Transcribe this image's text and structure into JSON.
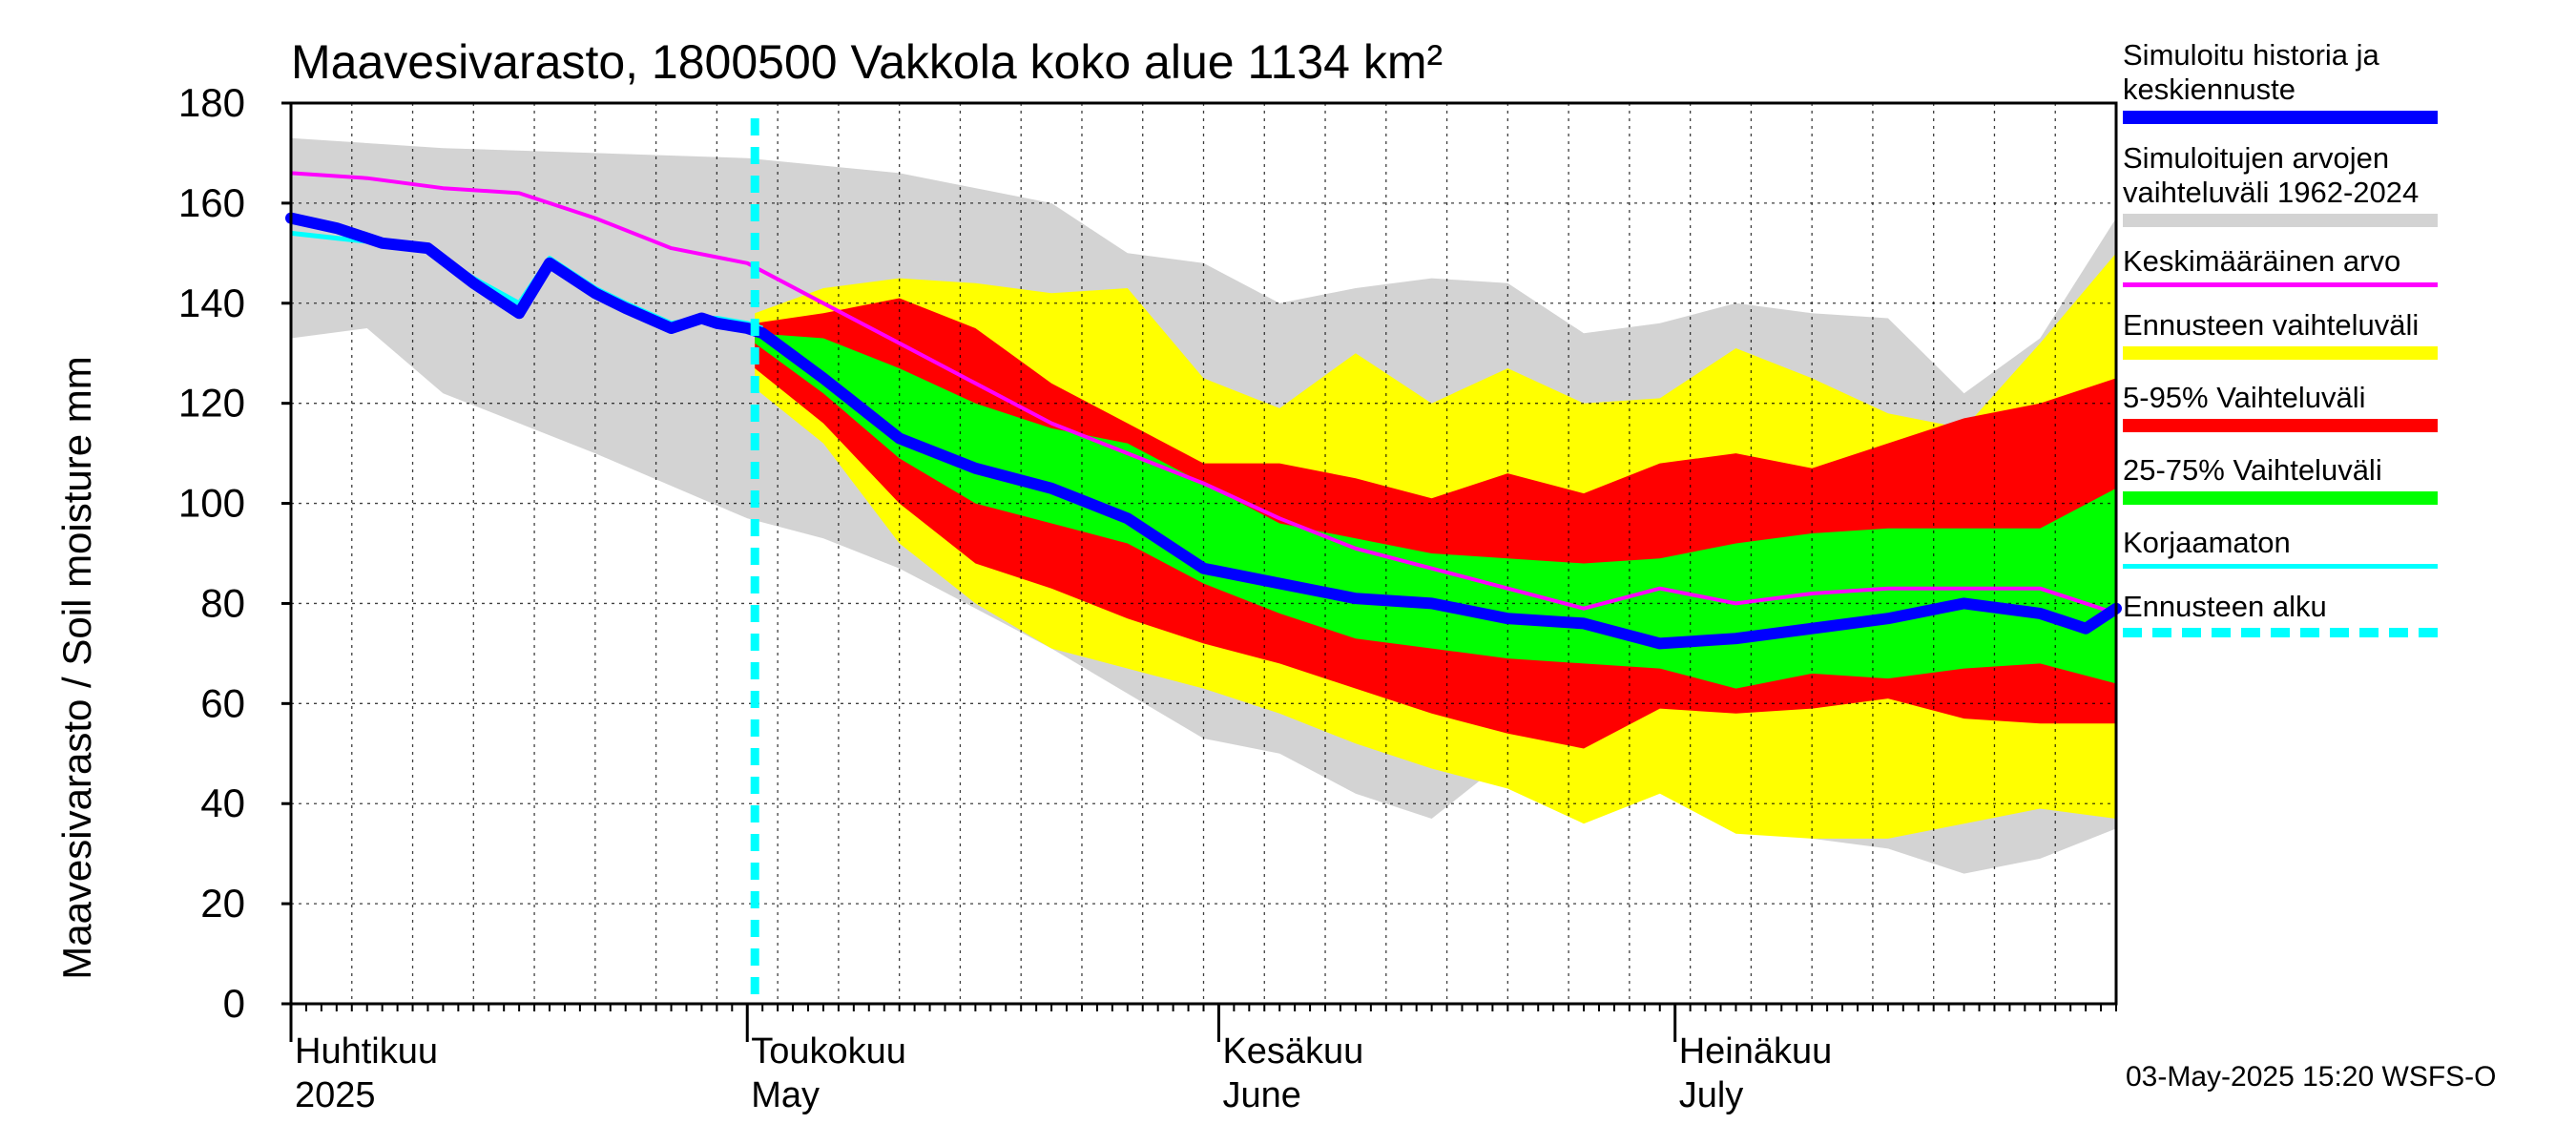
{
  "chart_data": {
    "type": "area",
    "title": "Maavesivarasto, 1800500 Vakkola koko alue 1134 km²",
    "ylabel": "Maavesivarasto / Soil moisture   mm",
    "ylim": [
      0,
      180
    ],
    "yticks": [
      0,
      20,
      40,
      60,
      80,
      100,
      120,
      140,
      160,
      180
    ],
    "xrange_days": [
      0,
      120
    ],
    "x_unit": "days since 2025-04-01",
    "grid": true,
    "month_labels": [
      {
        "fi": "Huhtikuu",
        "en": "2025",
        "day": 0
      },
      {
        "fi": "Toukokuu",
        "en": "May",
        "day": 30
      },
      {
        "fi": "Kesäkuu",
        "en": "June",
        "day": 61
      },
      {
        "fi": "Heinäkuu",
        "en": "July",
        "day": 91
      }
    ],
    "forecast_start_day": 30.5,
    "colors": {
      "history": "#0000ff",
      "range": "#d3d3d3",
      "mean": "#ff00ff",
      "forecast": "#ffff00",
      "p5_95": "#ff0000",
      "p25_75": "#00ff00",
      "uncorrected": "#00ffff",
      "start": "#00ffff"
    },
    "series": [
      {
        "name": "range_hi",
        "x": [
          0,
          10,
          20,
          30,
          40,
          50,
          55,
          60,
          65,
          70,
          75,
          80,
          85,
          90,
          95,
          100,
          105,
          110,
          115,
          120
        ],
        "y": [
          173,
          171,
          170,
          169,
          166,
          160,
          150,
          148,
          140,
          143,
          145,
          144,
          134,
          136,
          140,
          138,
          137,
          122,
          133,
          157
        ]
      },
      {
        "name": "range_lo",
        "x": [
          0,
          5,
          10,
          20,
          30,
          35,
          40,
          50,
          60,
          65,
          70,
          75,
          80,
          85,
          90,
          95,
          100,
          105,
          110,
          115,
          120
        ],
        "y": [
          133,
          135,
          122,
          110,
          97,
          93,
          87,
          71,
          53,
          50,
          42,
          37,
          49,
          49,
          44,
          39,
          33,
          31,
          26,
          29,
          35
        ]
      },
      {
        "name": "forecast_hi",
        "x": [
          30.5,
          35,
          40,
          45,
          50,
          55,
          60,
          65,
          70,
          75,
          80,
          85,
          90,
          95,
          100,
          105,
          110,
          115,
          120
        ],
        "y": [
          138,
          143,
          145,
          144,
          142,
          143,
          125,
          119,
          130,
          120,
          127,
          120,
          121,
          131,
          125,
          118,
          115,
          132,
          150
        ]
      },
      {
        "name": "forecast_lo",
        "x": [
          30.5,
          35,
          40,
          45,
          50,
          55,
          60,
          65,
          70,
          75,
          80,
          85,
          90,
          95,
          100,
          105,
          110,
          115,
          120
        ],
        "y": [
          123,
          112,
          92,
          80,
          71,
          67,
          63,
          58,
          52,
          47,
          43,
          36,
          42,
          34,
          33,
          33,
          36,
          39,
          37
        ]
      },
      {
        "name": "p95",
        "x": [
          30.5,
          35,
          40,
          45,
          50,
          55,
          60,
          65,
          70,
          75,
          80,
          85,
          90,
          95,
          100,
          105,
          110,
          115,
          120
        ],
        "y": [
          136,
          138,
          141,
          135,
          124,
          116,
          108,
          108,
          105,
          101,
          106,
          102,
          108,
          110,
          107,
          112,
          117,
          120,
          125
        ]
      },
      {
        "name": "p5",
        "x": [
          30.5,
          35,
          40,
          45,
          50,
          55,
          60,
          65,
          70,
          75,
          80,
          85,
          90,
          95,
          100,
          105,
          110,
          115,
          120
        ],
        "y": [
          127,
          116,
          100,
          88,
          83,
          77,
          72,
          68,
          63,
          58,
          54,
          51,
          59,
          58,
          59,
          61,
          57,
          56,
          56
        ]
      },
      {
        "name": "p75",
        "x": [
          30.5,
          35,
          40,
          45,
          50,
          55,
          60,
          65,
          70,
          75,
          80,
          85,
          90,
          95,
          100,
          105,
          110,
          115,
          120
        ],
        "y": [
          134,
          133,
          127,
          120,
          115,
          112,
          104,
          96,
          93,
          90,
          89,
          88,
          89,
          92,
          94,
          95,
          95,
          95,
          103
        ]
      },
      {
        "name": "p25",
        "x": [
          30.5,
          35,
          40,
          45,
          50,
          55,
          60,
          65,
          70,
          75,
          80,
          85,
          90,
          95,
          100,
          105,
          110,
          115,
          120
        ],
        "y": [
          132,
          122,
          109,
          100,
          96,
          92,
          84,
          78,
          73,
          71,
          69,
          68,
          67,
          63,
          66,
          65,
          67,
          68,
          64
        ]
      },
      {
        "name": "Keskimääräinen arvo",
        "x": [
          0,
          5,
          10,
          15,
          20,
          25,
          30,
          35,
          40,
          45,
          50,
          55,
          60,
          65,
          70,
          75,
          80,
          85,
          90,
          95,
          100,
          105,
          110,
          115,
          120
        ],
        "y": [
          166,
          165,
          163,
          162,
          157,
          151,
          148,
          140,
          132,
          124,
          116,
          110,
          104,
          97,
          91,
          87,
          83,
          79,
          83,
          80,
          82,
          83,
          83,
          83,
          78
        ]
      },
      {
        "name": "Simuloitu historia ja keskiennuste",
        "x": [
          0,
          3,
          6,
          9,
          12,
          15,
          17,
          18,
          20,
          22,
          25,
          27,
          28,
          30,
          31,
          35,
          40,
          45,
          50,
          55,
          60,
          65,
          70,
          75,
          80,
          85,
          90,
          95,
          100,
          105,
          110,
          115,
          118,
          120
        ],
        "y": [
          157,
          155,
          152,
          151,
          144,
          138,
          148,
          146,
          142,
          139,
          135,
          137,
          136,
          135,
          134,
          125,
          113,
          107,
          103,
          97,
          87,
          84,
          81,
          80,
          77,
          76,
          72,
          73,
          75,
          77,
          80,
          78,
          75,
          79
        ]
      },
      {
        "name": "Korjaamaton",
        "x": [
          0,
          3,
          6,
          9,
          12,
          15,
          17,
          18,
          20,
          22,
          25,
          27,
          28,
          30,
          31
        ],
        "y": [
          154,
          153,
          152,
          151,
          145,
          140,
          149,
          147,
          143,
          140,
          136,
          137,
          137,
          136,
          135
        ]
      }
    ]
  },
  "legend": {
    "history": "Simuloitu historia ja\nkeskiennuste",
    "range": "Simuloitujen arvojen\nvaihteluväli 1962-2024",
    "mean": "Keskimääräinen arvo",
    "forecast": "Ennusteen vaihteluväli",
    "p5_95": "5-95% Vaihteluväli",
    "p25_75": "25-75% Vaihteluväli",
    "uncorrected": "Korjaamaton",
    "start": "Ennusteen alku"
  },
  "footer": "03-May-2025 15:20 WSFS-O"
}
